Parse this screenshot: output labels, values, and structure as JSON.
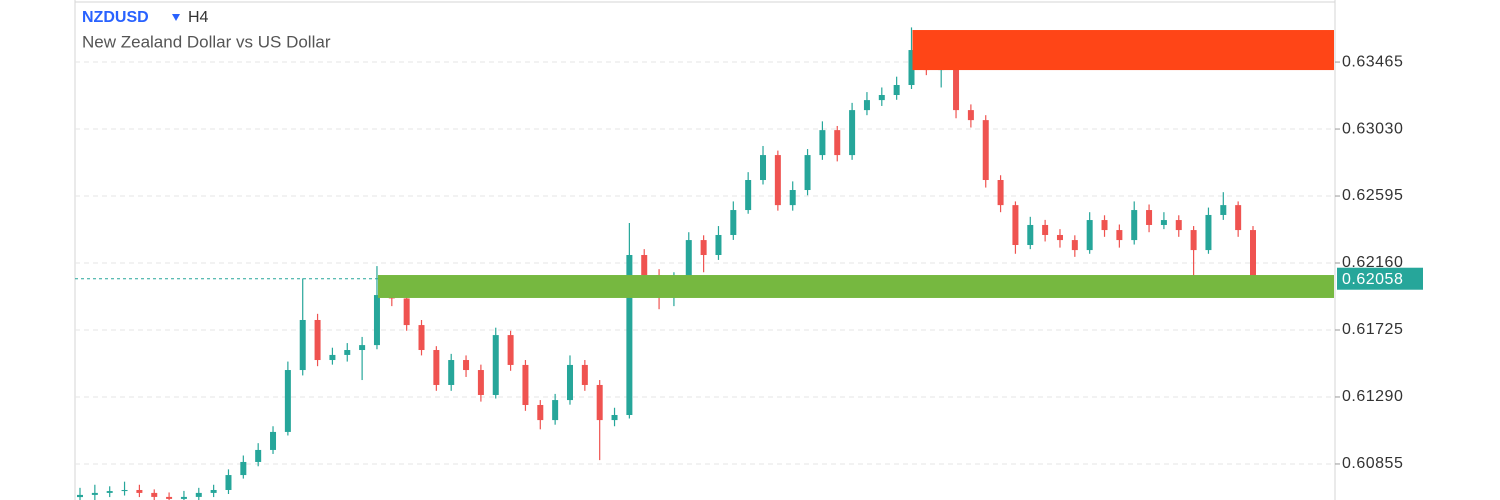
{
  "chart_data": {
    "type": "candlestick",
    "symbol": "NZDUSD",
    "interval": "H4",
    "title": "New Zealand Dollar vs US Dollar",
    "up_color": "#26a69a",
    "down_color": "#ef5350",
    "grid": true,
    "ylim": [
      0.60621,
      0.63868
    ],
    "yticks": [
      0.60855,
      {
        "value": 0.6129,
        "label": "0.61290"
      },
      0.61725,
      {
        "value": 0.6216,
        "label": "0.62160"
      },
      0.62595,
      {
        "value": 0.6303,
        "label": "0.63030"
      },
      0.63465
    ],
    "last_price": 0.62058,
    "last_price_color": "#26a69a",
    "zones": [
      {
        "color": "#ff4517",
        "from": 56,
        "ylim": [
          0.63413,
          0.63673
        ]
      },
      {
        "color": "#76b840",
        "from": 20,
        "ylim": [
          0.61933,
          0.62082
        ]
      }
    ],
    "ohlc": [
      [
        0.6064,
        0.607,
        0.6061,
        0.60654
      ],
      [
        0.60654,
        0.6072,
        0.6062,
        0.60667
      ],
      [
        0.60667,
        0.6071,
        0.6064,
        0.60679
      ],
      [
        0.60679,
        0.6074,
        0.6065,
        0.60686
      ],
      [
        0.60686,
        0.6072,
        0.6064,
        0.60667
      ],
      [
        0.60667,
        0.6069,
        0.6061,
        0.60641
      ],
      [
        0.60641,
        0.6067,
        0.606,
        0.60628
      ],
      [
        0.60628,
        0.6068,
        0.60605,
        0.60641
      ],
      [
        0.60641,
        0.607,
        0.6062,
        0.60667
      ],
      [
        0.60667,
        0.6072,
        0.6064,
        0.60686
      ],
      [
        0.60686,
        0.6082,
        0.6066,
        0.60783
      ],
      [
        0.60783,
        0.6091,
        0.6076,
        0.60868
      ],
      [
        0.60868,
        0.6099,
        0.6084,
        0.60946
      ],
      [
        0.60946,
        0.611,
        0.6092,
        0.61063
      ],
      [
        0.61063,
        0.6152,
        0.6104,
        0.61465
      ],
      [
        0.61465,
        0.6206,
        0.6143,
        0.6179
      ],
      [
        0.6179,
        0.6183,
        0.6149,
        0.6153
      ],
      [
        0.6153,
        0.6161,
        0.615,
        0.61563
      ],
      [
        0.61563,
        0.6164,
        0.6152,
        0.61595
      ],
      [
        0.61595,
        0.6168,
        0.614,
        0.61627
      ],
      [
        0.61627,
        0.6214,
        0.616,
        0.61952
      ],
      [
        0.61952,
        0.62,
        0.6188,
        0.6193
      ],
      [
        0.6193,
        0.6196,
        0.6172,
        0.61757
      ],
      [
        0.61757,
        0.6179,
        0.6156,
        0.61595
      ],
      [
        0.61595,
        0.6162,
        0.6133,
        0.61368
      ],
      [
        0.61368,
        0.6157,
        0.6133,
        0.6153
      ],
      [
        0.6153,
        0.6156,
        0.6142,
        0.61465
      ],
      [
        0.61465,
        0.615,
        0.6126,
        0.61303
      ],
      [
        0.61303,
        0.6174,
        0.6128,
        0.61692
      ],
      [
        0.61692,
        0.6172,
        0.6146,
        0.61498
      ],
      [
        0.61498,
        0.6153,
        0.612,
        0.61238
      ],
      [
        0.61238,
        0.6127,
        0.6108,
        0.6114
      ],
      [
        0.6114,
        0.6131,
        0.6111,
        0.6127
      ],
      [
        0.6127,
        0.6156,
        0.6124,
        0.61498
      ],
      [
        0.61498,
        0.6153,
        0.6133,
        0.61368
      ],
      [
        0.61368,
        0.614,
        0.6088,
        0.6114
      ],
      [
        0.6114,
        0.6122,
        0.611,
        0.61173
      ],
      [
        0.61173,
        0.6242,
        0.6115,
        0.62212
      ],
      [
        0.62212,
        0.6225,
        0.6195,
        0.62082
      ],
      [
        0.62082,
        0.6212,
        0.6186,
        0.62017
      ],
      [
        0.62017,
        0.621,
        0.6188,
        0.6205
      ],
      [
        0.6205,
        0.6236,
        0.6202,
        0.62309
      ],
      [
        0.62309,
        0.6234,
        0.621,
        0.62212
      ],
      [
        0.62212,
        0.624,
        0.6218,
        0.62342
      ],
      [
        0.62342,
        0.6256,
        0.6231,
        0.62504
      ],
      [
        0.62504,
        0.6275,
        0.6248,
        0.62699
      ],
      [
        0.62699,
        0.6292,
        0.6267,
        0.62861
      ],
      [
        0.62861,
        0.6289,
        0.625,
        0.62536
      ],
      [
        0.62536,
        0.6269,
        0.625,
        0.62634
      ],
      [
        0.62634,
        0.629,
        0.626,
        0.62861
      ],
      [
        0.62861,
        0.6308,
        0.6283,
        0.63023
      ],
      [
        0.63023,
        0.6305,
        0.6282,
        0.62861
      ],
      [
        0.62861,
        0.632,
        0.6283,
        0.63153
      ],
      [
        0.63153,
        0.6327,
        0.6312,
        0.63218
      ],
      [
        0.63218,
        0.633,
        0.6318,
        0.63251
      ],
      [
        0.63251,
        0.6337,
        0.6322,
        0.63316
      ],
      [
        0.63316,
        0.6369,
        0.6329,
        0.63543
      ],
      [
        0.63543,
        0.6366,
        0.6338,
        0.63413
      ],
      [
        0.63413,
        0.6356,
        0.633,
        0.63446
      ],
      [
        0.63446,
        0.6348,
        0.631,
        0.63153
      ],
      [
        0.63153,
        0.6319,
        0.6304,
        0.63088
      ],
      [
        0.63088,
        0.6312,
        0.6265,
        0.62699
      ],
      [
        0.62699,
        0.6273,
        0.6249,
        0.62536
      ],
      [
        0.62536,
        0.6256,
        0.6222,
        0.62277
      ],
      [
        0.62277,
        0.6246,
        0.6225,
        0.62407
      ],
      [
        0.62407,
        0.6244,
        0.623,
        0.62342
      ],
      [
        0.62342,
        0.6238,
        0.6226,
        0.62309
      ],
      [
        0.62309,
        0.6234,
        0.622,
        0.62244
      ],
      [
        0.62244,
        0.6249,
        0.6222,
        0.62439
      ],
      [
        0.62439,
        0.6247,
        0.6233,
        0.62374
      ],
      [
        0.62374,
        0.6241,
        0.6226,
        0.62309
      ],
      [
        0.62309,
        0.6256,
        0.6228,
        0.62504
      ],
      [
        0.62504,
        0.6254,
        0.6236,
        0.62407
      ],
      [
        0.62407,
        0.6249,
        0.6238,
        0.62439
      ],
      [
        0.62439,
        0.6247,
        0.6233,
        0.62374
      ],
      [
        0.62374,
        0.624,
        0.6203,
        0.62244
      ],
      [
        0.62244,
        0.6252,
        0.6222,
        0.62472
      ],
      [
        0.62472,
        0.6262,
        0.6244,
        0.62536
      ],
      [
        0.62536,
        0.6256,
        0.6233,
        0.62374
      ],
      [
        0.62374,
        0.624,
        0.6204,
        0.62058
      ]
    ]
  }
}
